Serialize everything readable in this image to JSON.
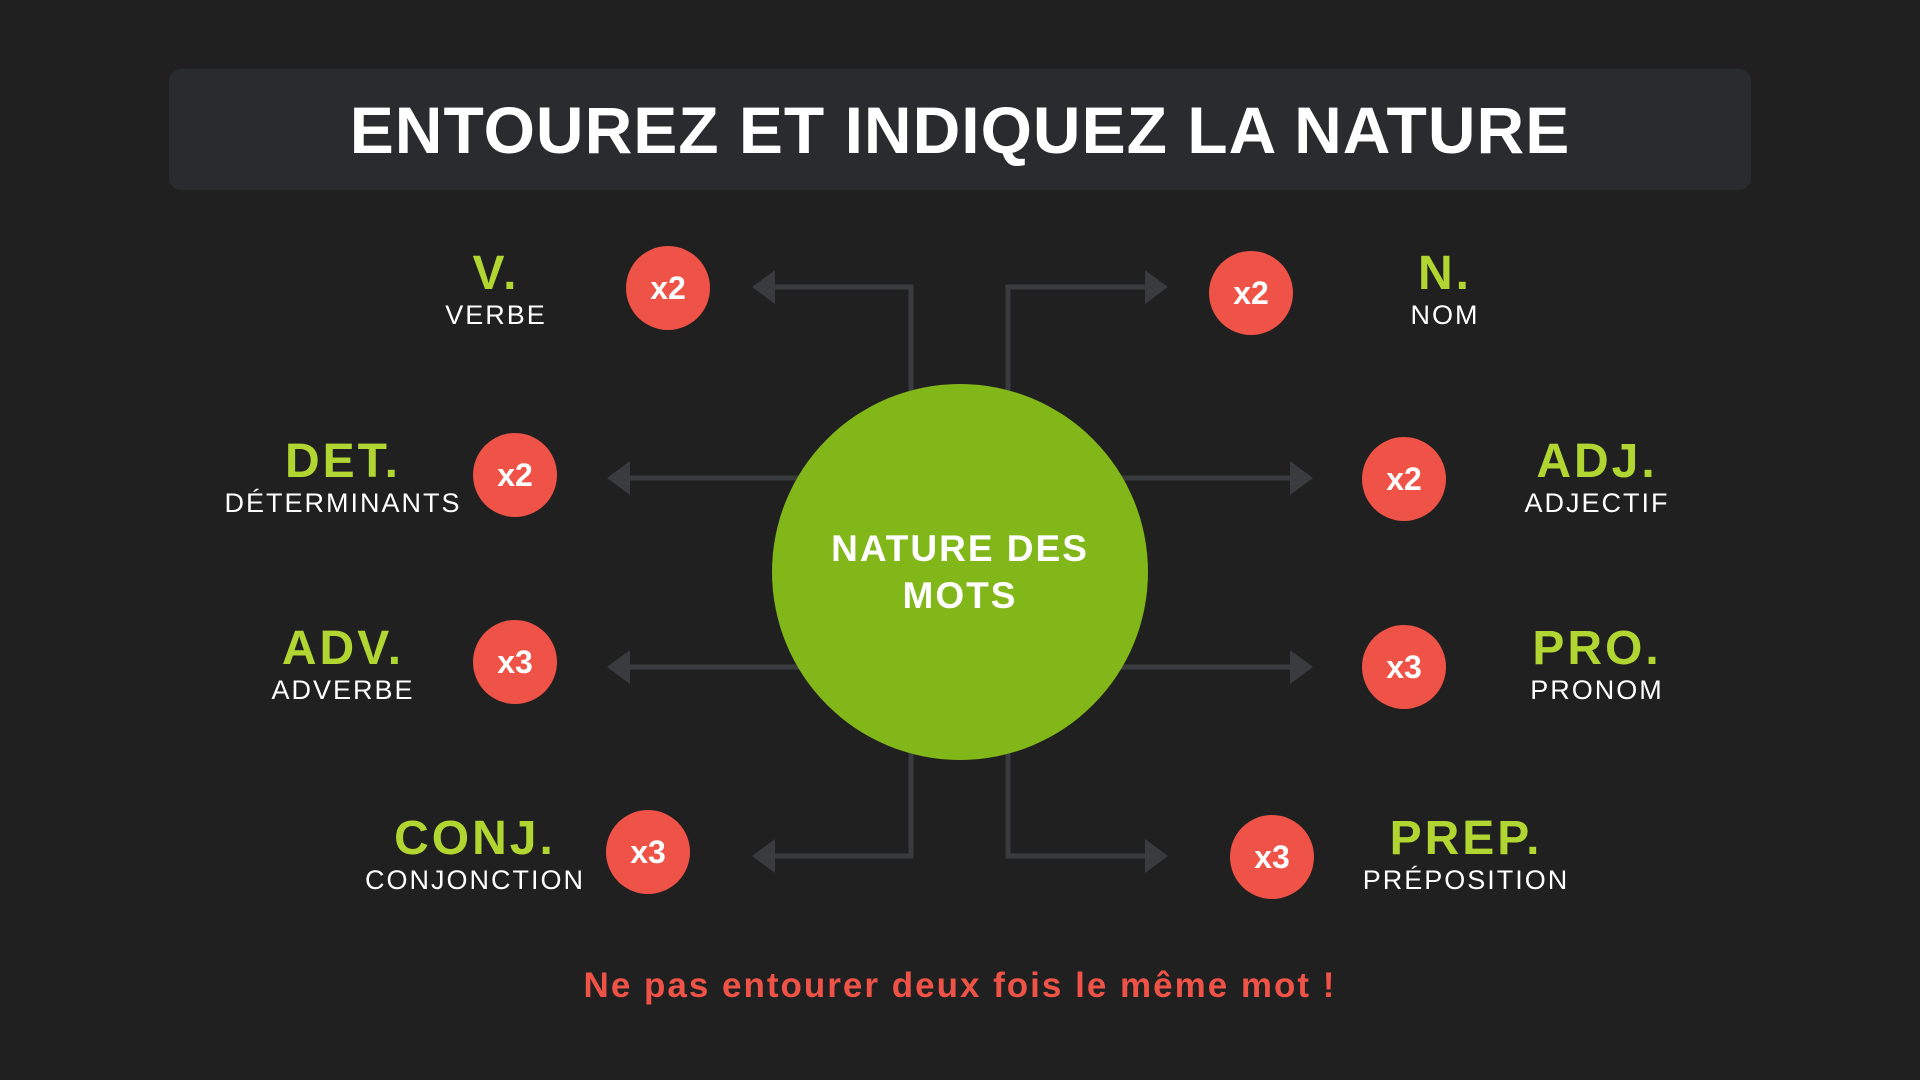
{
  "title": "ENTOUREZ ET INDIQUEZ LA NATURE",
  "center": "NATURE DES MOTS",
  "colors": {
    "background": "#202020",
    "accent_green": "#82b719",
    "label_green": "#b2d631",
    "badge_red": "#ef5246",
    "arrow": "#3a3b3f"
  },
  "items": [
    {
      "abbr": "V.",
      "full": "VERBE",
      "count": "x2"
    },
    {
      "abbr": "N.",
      "full": "NOM",
      "count": "x2"
    },
    {
      "abbr": "DET.",
      "full": "DÉTERMINANTS",
      "count": "x2"
    },
    {
      "abbr": "ADJ.",
      "full": "ADJECTIF",
      "count": "x2"
    },
    {
      "abbr": "ADV.",
      "full": "ADVERBE",
      "count": "x3"
    },
    {
      "abbr": "PRO.",
      "full": "PRONOM",
      "count": "x3"
    },
    {
      "abbr": "CONJ.",
      "full": "CONJONCTION",
      "count": "x3"
    },
    {
      "abbr": "PREP.",
      "full": "PRÉPOSITION",
      "count": "x3"
    }
  ],
  "footer": "Ne pas entourer deux fois le même mot !"
}
